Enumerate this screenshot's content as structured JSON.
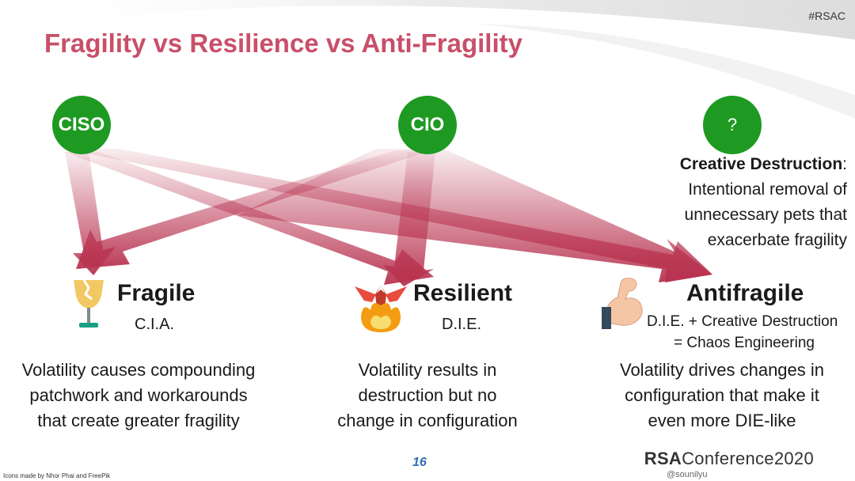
{
  "title": "Fragility vs Resilience vs Anti-Fragility",
  "hashtag": "#RSAC",
  "roles": {
    "ciso": "CISO",
    "cio": "CIO",
    "unknown": "?"
  },
  "creative_destruction": {
    "term": "Creative Destruction",
    "colon": ":",
    "lines": [
      "Intentional removal of",
      "unnecessary pets that",
      "exacerbate fragility"
    ]
  },
  "columns": {
    "fragile": {
      "heading": "Fragile",
      "sub": "C.I.A.",
      "icon": "broken-glass-icon",
      "desc": [
        "Volatility causes compounding",
        "patchwork and workarounds",
        "that create greater fragility"
      ]
    },
    "resilient": {
      "heading": "Resilient",
      "sub": "D.I.E.",
      "icon": "phoenix-icon",
      "desc": [
        "Volatility results in",
        "destruction but no",
        "change in configuration"
      ]
    },
    "antifragile": {
      "heading": "Antifragile",
      "sub1": "D.I.E. + Creative Destruction",
      "sub2": "= Chaos Engineering",
      "icon": "flexed-bicep-icon",
      "desc": [
        "Volatility drives changes in",
        "configuration that make it",
        "even more DIE-like"
      ]
    }
  },
  "footer": {
    "credits": "Icons made by Nhor Phai and FreePik",
    "page_number": "16",
    "brand_bold": "RSA",
    "brand_rest": "Conference2020",
    "handle": "@sounilyu"
  },
  "colors": {
    "title": "#c94f68",
    "arrow": "#b8324f",
    "circle": "#1e9a22"
  }
}
